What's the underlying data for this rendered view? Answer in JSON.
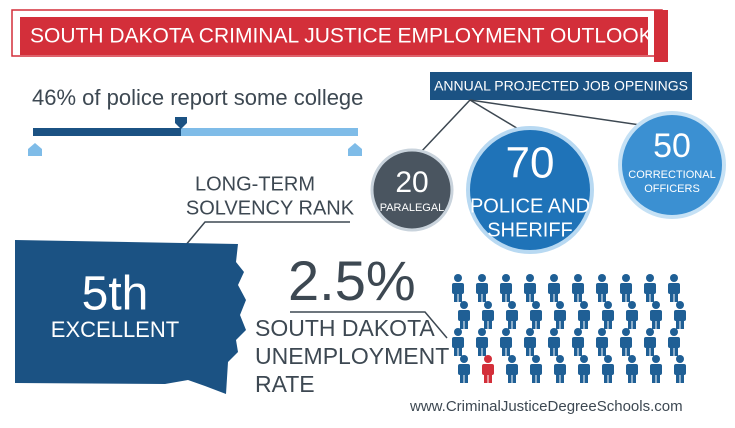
{
  "header": {
    "title": "SOUTH DAKOTA CRIMINAL JUSTICE EMPLOYMENT OUTLOOK"
  },
  "college": {
    "text": "46% of police report some college"
  },
  "openings": {
    "title": "ANNUAL PROJECTED JOB OPENINGS",
    "items": [
      {
        "value": "20",
        "label": "PARALEGAL"
      },
      {
        "value": "70",
        "label_lines": [
          "POLICE AND",
          "SHERIFF"
        ]
      },
      {
        "value": "50",
        "label_lines": [
          "CORRECTIONAL",
          "OFFICERS"
        ]
      }
    ]
  },
  "solvency": {
    "label_lines": [
      "LONG-TERM",
      "SOLVENCY RANK"
    ],
    "rank": "5th",
    "rating": "EXCELLENT"
  },
  "unemployment": {
    "value": "2.5%",
    "label_lines": [
      "SOUTH DAKOTA",
      "UNEMPLOYMENT",
      "RATE"
    ]
  },
  "footer": {
    "url": "www.CriminalJusticeDegreeSchools.com"
  }
}
